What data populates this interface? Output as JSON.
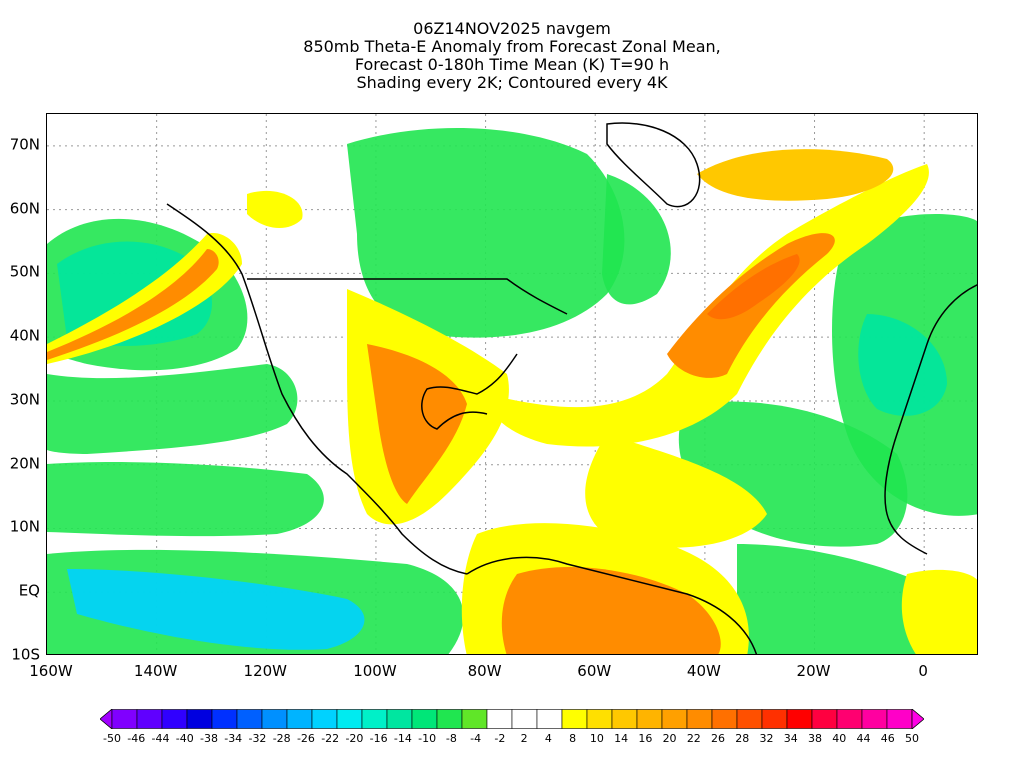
{
  "title": {
    "line1": "06Z14NOV2025 navgem",
    "line2": "850mb Theta-E Anomaly from Forecast Zonal Mean,",
    "line3": "Forecast 0-180h Time Mean (K) T=90 h",
    "line4": "Shading every 2K; Contoured every 4K"
  },
  "axes": {
    "lat_labels": [
      "70N",
      "60N",
      "50N",
      "40N",
      "30N",
      "20N",
      "10N",
      "EQ",
      "10S"
    ],
    "lon_labels": [
      "160W",
      "140W",
      "120W",
      "100W",
      "80W",
      "60W",
      "40W",
      "20W",
      "0"
    ],
    "lat_range": [
      -10,
      75
    ],
    "lon_range": [
      -160,
      10
    ]
  },
  "colorbar": {
    "labels": [
      "-50",
      "-46",
      "-44",
      "-40",
      "-38",
      "-34",
      "-32",
      "-28",
      "-26",
      "-22",
      "-20",
      "-16",
      "-14",
      "-10",
      "-8",
      "-4",
      "-2",
      "2",
      "4",
      "8",
      "10",
      "14",
      "16",
      "20",
      "22",
      "26",
      "28",
      "32",
      "34",
      "38",
      "40",
      "44",
      "46",
      "50"
    ],
    "colors": [
      "#a000ff",
      "#8000ff",
      "#6000ff",
      "#3000ff",
      "#0000e0",
      "#0030ff",
      "#0060ff",
      "#0090ff",
      "#00b4ff",
      "#00d2ff",
      "#00ebf0",
      "#00f0c8",
      "#00e6a0",
      "#00e678",
      "#20e650",
      "#60e628",
      "#ffffff",
      "#ffffff",
      "#ffffff",
      "#ffff00",
      "#ffe000",
      "#ffc800",
      "#ffb400",
      "#ffa000",
      "#ff8c00",
      "#ff7000",
      "#ff5000",
      "#ff3000",
      "#ff0000",
      "#ff0040",
      "#ff0070",
      "#ff00a0",
      "#ff00c8",
      "#ff00e6"
    ]
  },
  "map": {
    "colors": {
      "land_outline": "#000000",
      "ocean_cool": "#20e650",
      "cool_medium": "#00e6a0",
      "cool_strong": "#00d2ff",
      "warm_light": "#ffff00",
      "warm_medium": "#ffc800",
      "warm_strong": "#ff8c00",
      "warm_peak": "#ff7000",
      "neutral": "#ffffff"
    }
  }
}
